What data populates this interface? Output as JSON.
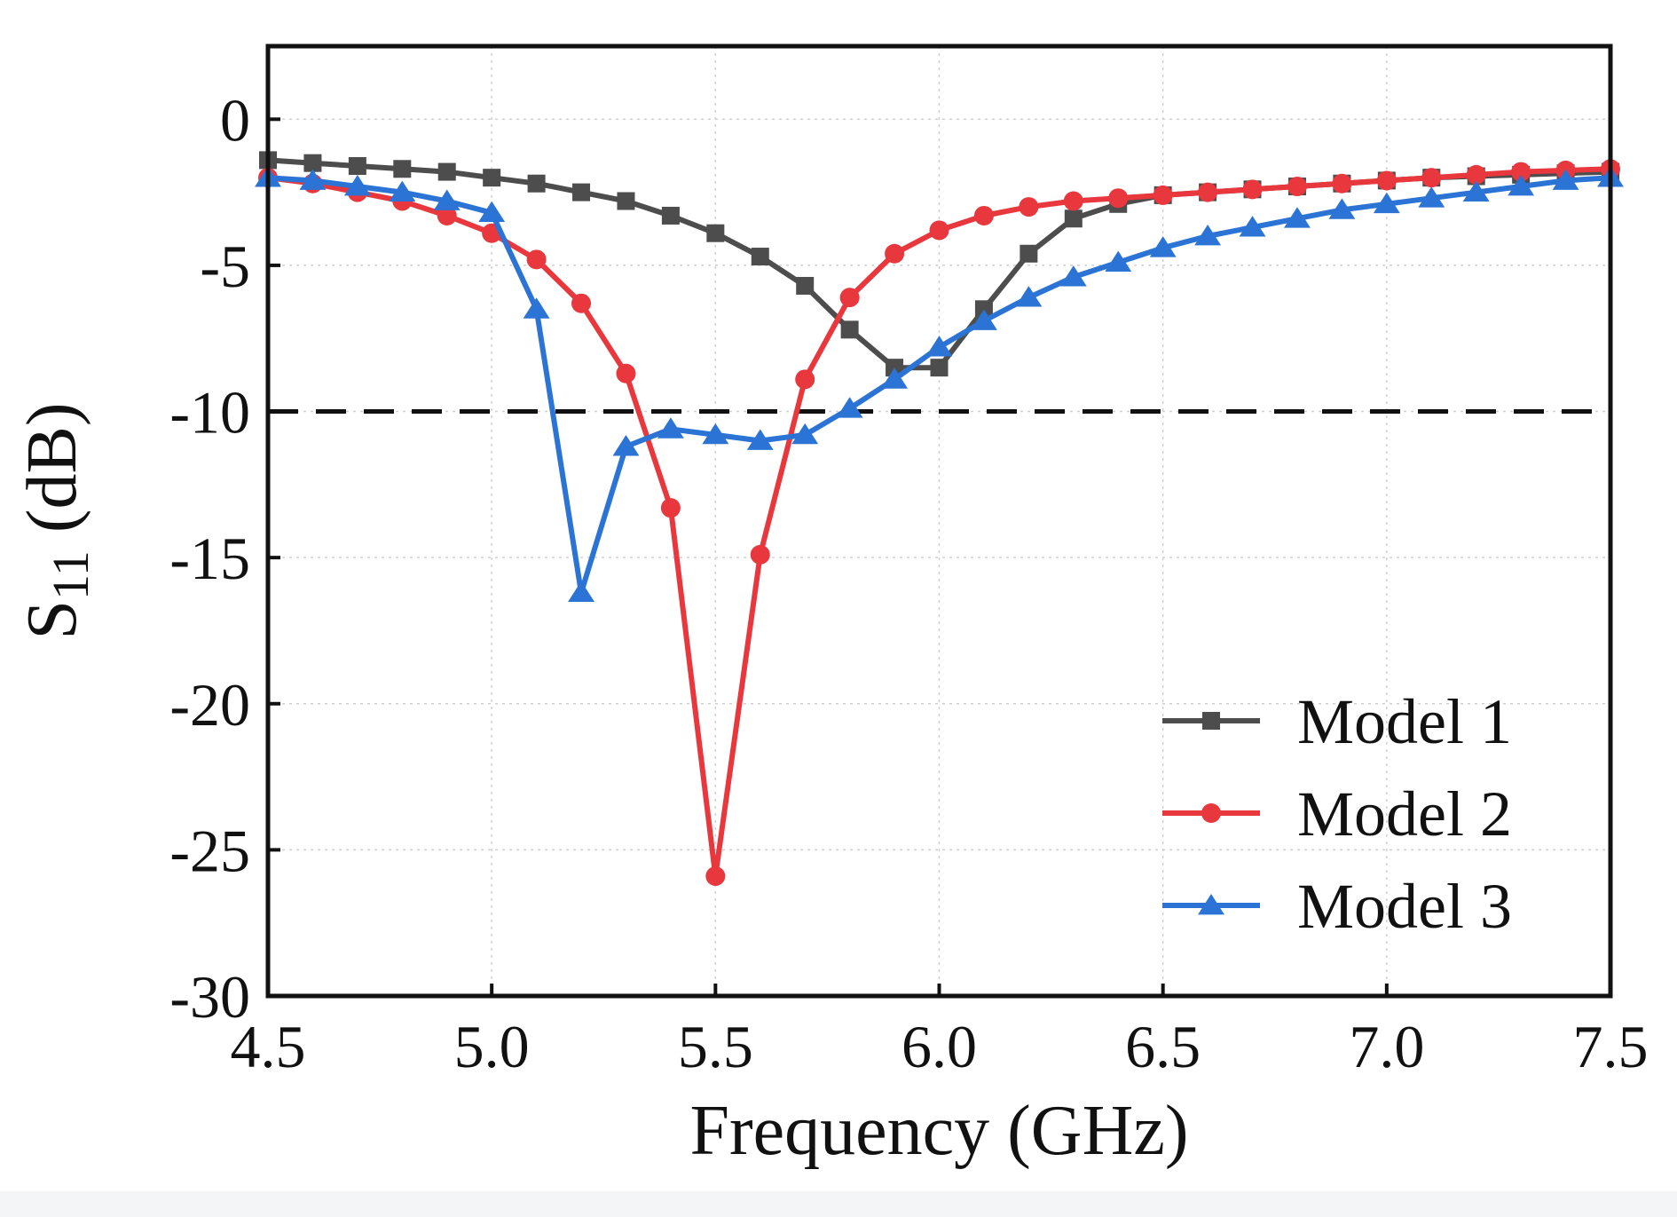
{
  "chart_data": {
    "type": "line",
    "title": "",
    "xlabel": "Frequency (GHz)",
    "ylabel_main": "S",
    "ylabel_sub": "11",
    "ylabel_unit": " (dB)",
    "xlim": [
      4.5,
      7.5
    ],
    "ylim": [
      -30,
      2.5
    ],
    "x_ticks": [
      4.5,
      5.0,
      5.5,
      6.0,
      6.5,
      7.0,
      7.5
    ],
    "x_tick_labels": [
      "4.5",
      "5.0",
      "5.5",
      "6.0",
      "6.5",
      "7.0",
      "7.5"
    ],
    "y_ticks": [
      0,
      -5,
      -10,
      -15,
      -20,
      -25,
      -30
    ],
    "y_tick_labels": [
      "0",
      "-5",
      "-10",
      "-15",
      "-20",
      "-25",
      "-30"
    ],
    "grid": true,
    "legend_position": "bottom-right",
    "reference_line": {
      "y": -10,
      "style": "dashed",
      "color": "#111111"
    },
    "x": [
      4.5,
      4.6,
      4.7,
      4.8,
      4.9,
      5.0,
      5.1,
      5.2,
      5.3,
      5.4,
      5.5,
      5.6,
      5.7,
      5.8,
      5.9,
      6.0,
      6.1,
      6.2,
      6.3,
      6.4,
      6.5,
      6.6,
      6.7,
      6.8,
      6.9,
      7.0,
      7.1,
      7.2,
      7.3,
      7.4,
      7.5
    ],
    "series": [
      {
        "name": "Model 1",
        "color": "#4d4d4d",
        "marker": "square",
        "values": [
          -1.4,
          -1.5,
          -1.6,
          -1.7,
          -1.8,
          -2.0,
          -2.2,
          -2.5,
          -2.8,
          -3.3,
          -3.9,
          -4.7,
          -5.7,
          -7.2,
          -8.5,
          -8.5,
          -6.5,
          -4.6,
          -3.4,
          -2.9,
          -2.6,
          -2.5,
          -2.4,
          -2.3,
          -2.2,
          -2.1,
          -2.0,
          -1.95,
          -1.9,
          -1.85,
          -1.8
        ]
      },
      {
        "name": "Model 2",
        "color": "#e8383d",
        "marker": "circle",
        "values": [
          -2.0,
          -2.2,
          -2.5,
          -2.8,
          -3.3,
          -3.9,
          -4.8,
          -6.3,
          -8.7,
          -13.3,
          -25.9,
          -14.9,
          -8.9,
          -6.1,
          -4.6,
          -3.8,
          -3.3,
          -3.0,
          -2.8,
          -2.7,
          -2.6,
          -2.5,
          -2.4,
          -2.3,
          -2.2,
          -2.1,
          -2.0,
          -1.9,
          -1.8,
          -1.75,
          -1.7
        ]
      },
      {
        "name": "Model 3",
        "color": "#2b74d6",
        "marker": "triangle",
        "values": [
          -2.0,
          -2.1,
          -2.3,
          -2.5,
          -2.8,
          -3.2,
          -6.5,
          -16.2,
          -11.2,
          -10.6,
          -10.8,
          -11.0,
          -10.8,
          -9.9,
          -8.9,
          -7.8,
          -6.9,
          -6.1,
          -5.4,
          -4.9,
          -4.4,
          -4.0,
          -3.7,
          -3.4,
          -3.1,
          -2.9,
          -2.7,
          -2.5,
          -2.3,
          -2.1,
          -2.0
        ]
      }
    ]
  }
}
